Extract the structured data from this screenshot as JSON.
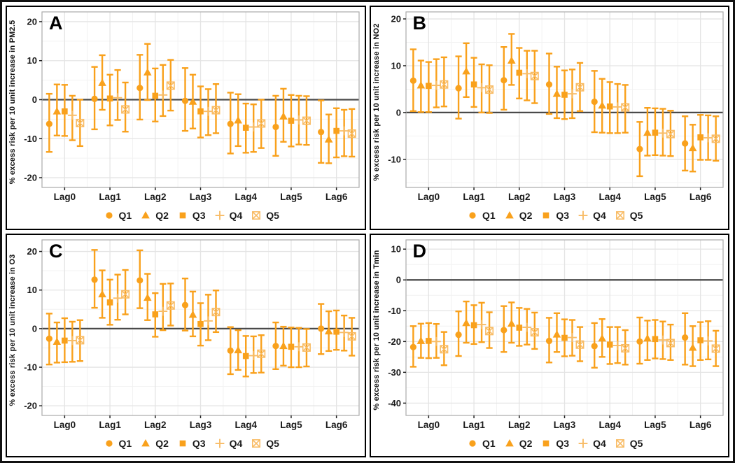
{
  "figure": {
    "background": "#ffffff",
    "border_color": "#111111"
  },
  "theme": {
    "series_color": "#F9A11C",
    "series_light_color": "#F8BC66",
    "refline_color": "#4a4a4a",
    "grid_major_color": "#e4e4e4",
    "grid_minor_color": "#f2f2f2",
    "plot_border_color": "#ababab",
    "axis_text_color": "#1a1a1a",
    "tick_color": "#222222"
  },
  "legend_labels": [
    "Q1",
    "Q2",
    "Q3",
    "Q4",
    "Q5"
  ],
  "chart_data": [
    {
      "type": "scatter",
      "panel_label": "A",
      "ylabel": "% excess risk per 10 unit increase in PM2.5",
      "categories": [
        "Lag0",
        "Lag1",
        "Lag2",
        "Lag3",
        "Lag4",
        "Lag5",
        "Lag6"
      ],
      "yticks": [
        20,
        10,
        0,
        -10,
        -20
      ],
      "yminor": [
        15,
        5,
        -5,
        -15
      ],
      "ylim": [
        -22.5,
        22.5
      ],
      "refline": 0,
      "series": [
        {
          "name": "Q1",
          "marker": "circle",
          "values": [
            -6.2,
            0.2,
            3.0,
            -0.3,
            -6.2,
            -7.0,
            -8.3
          ],
          "lo": [
            -13.4,
            -7.6,
            -5.1,
            -8.0,
            -13.8,
            -14.4,
            -16.2
          ],
          "hi": [
            1.5,
            8.4,
            11.5,
            8.1,
            1.8,
            1.0,
            -0.2
          ]
        },
        {
          "name": "Q2",
          "marker": "triangle",
          "values": [
            -3.0,
            4.3,
            7.0,
            -0.5,
            -5.3,
            -4.3,
            -10.2
          ],
          "lo": [
            -9.2,
            -2.6,
            -0.1,
            -7.4,
            -11.9,
            -10.8,
            -16.3
          ],
          "hi": [
            3.9,
            11.4,
            14.3,
            6.4,
            1.4,
            2.8,
            -3.8
          ]
        },
        {
          "name": "Q3",
          "marker": "square",
          "values": [
            -3.0,
            0.3,
            1.0,
            -3.0,
            -7.2,
            -5.4,
            -8.0
          ],
          "lo": [
            -9.3,
            -6.6,
            -5.6,
            -9.7,
            -13.6,
            -12.0,
            -14.8
          ],
          "hi": [
            3.8,
            6.4,
            8.0,
            3.4,
            -1.0,
            1.2,
            -2.2
          ]
        },
        {
          "name": "Q4",
          "marker": "plus",
          "values": [
            -4.0,
            0.5,
            1.2,
            -3.0,
            -7.0,
            -5.2,
            -8.0
          ],
          "lo": [
            -10.4,
            -5.2,
            -4.2,
            -9.1,
            -13.4,
            -11.5,
            -14.5
          ],
          "hi": [
            1.0,
            7.6,
            8.9,
            2.7,
            -1.2,
            1.0,
            -2.6
          ]
        },
        {
          "name": "Q5",
          "marker": "square-x",
          "values": [
            -6.0,
            -2.5,
            3.6,
            -2.7,
            -6.1,
            -5.4,
            -8.7
          ],
          "lo": [
            -11.9,
            -8.2,
            -2.8,
            -8.6,
            -12.4,
            -11.6,
            -14.6
          ],
          "hi": [
            0.0,
            4.4,
            10.2,
            4.0,
            0.0,
            0.9,
            -2.4
          ]
        }
      ]
    },
    {
      "type": "scatter",
      "panel_label": "B",
      "ylabel": "% excess risk per 10 unit increase in NO2",
      "categories": [
        "Lag0",
        "Lag1",
        "Lag2",
        "Lag3",
        "Lag4",
        "Lag5",
        "Lag6"
      ],
      "yticks": [
        20,
        10,
        0,
        -10
      ],
      "yminor": [
        15,
        5,
        -5,
        -15
      ],
      "ylim": [
        -16,
        21.5
      ],
      "refline": 0,
      "series": [
        {
          "name": "Q1",
          "marker": "circle",
          "values": [
            6.8,
            5.2,
            6.9,
            6.0,
            2.3,
            -7.8,
            -6.6
          ],
          "lo": [
            0.3,
            -1.3,
            0.6,
            -0.3,
            -4.2,
            -13.6,
            -12.4
          ],
          "hi": [
            13.5,
            12.0,
            14.0,
            12.6,
            8.9,
            -2.0,
            -0.8
          ]
        },
        {
          "name": "Q2",
          "marker": "triangle",
          "values": [
            5.8,
            8.8,
            11.1,
            4.0,
            1.5,
            -4.3,
            -7.6
          ],
          "lo": [
            0.1,
            3.3,
            5.9,
            -1.2,
            -4.3,
            -9.2,
            -12.6
          ],
          "hi": [
            11.1,
            14.8,
            16.8,
            9.8,
            7.2,
            1.0,
            -2.6
          ]
        },
        {
          "name": "Q3",
          "marker": "square",
          "values": [
            5.7,
            6.0,
            8.5,
            3.8,
            1.3,
            -4.3,
            -5.3
          ],
          "lo": [
            0.1,
            1.2,
            3.0,
            -1.4,
            -4.4,
            -9.1,
            -10.1
          ],
          "hi": [
            10.8,
            11.7,
            13.8,
            9.0,
            6.5,
            0.9,
            -0.5
          ]
        },
        {
          "name": "Q4",
          "marker": "plus",
          "values": [
            5.8,
            5.3,
            8.3,
            4.0,
            1.2,
            -4.4,
            -5.4
          ],
          "lo": [
            1.1,
            0.0,
            2.6,
            -1.2,
            -4.4,
            -9.2,
            -10.1
          ],
          "hi": [
            11.4,
            10.3,
            13.2,
            9.2,
            6.1,
            0.8,
            -0.6
          ]
        },
        {
          "name": "Q5",
          "marker": "square-x",
          "values": [
            6.0,
            4.9,
            7.8,
            5.4,
            1.1,
            -4.6,
            -5.6
          ],
          "lo": [
            1.3,
            -0.1,
            2.0,
            0.3,
            -4.3,
            -9.3,
            -10.3
          ],
          "hi": [
            11.8,
            10.1,
            13.2,
            10.6,
            5.9,
            0.4,
            -0.8
          ]
        }
      ]
    },
    {
      "type": "scatter",
      "panel_label": "C",
      "ylabel": "% excess risk per 10 unit increase in O3",
      "categories": [
        "Lag0",
        "Lag1",
        "Lag2",
        "Lag3",
        "Lag4",
        "Lag5",
        "Lag6"
      ],
      "yticks": [
        20,
        10,
        0,
        -10,
        -20
      ],
      "yminor": [
        15,
        5,
        -5,
        -15
      ],
      "ylim": [
        -22.5,
        23
      ],
      "refline": 0,
      "series": [
        {
          "name": "Q1",
          "marker": "circle",
          "values": [
            -2.6,
            12.7,
            12.5,
            6.1,
            -5.7,
            -4.5,
            0.0
          ],
          "lo": [
            -9.3,
            5.4,
            5.3,
            -0.5,
            -11.8,
            -10.5,
            -6.6
          ],
          "hi": [
            3.9,
            20.4,
            20.3,
            13.0,
            0.4,
            1.6,
            6.4
          ]
        },
        {
          "name": "Q2",
          "marker": "triangle",
          "values": [
            -3.4,
            8.9,
            8.0,
            3.6,
            -5.6,
            -4.5,
            -0.7
          ],
          "lo": [
            -8.8,
            2.8,
            2.2,
            -2.0,
            -10.7,
            -9.6,
            -5.8
          ],
          "hi": [
            1.6,
            15.1,
            14.2,
            9.6,
            -0.4,
            0.5,
            4.5
          ]
        },
        {
          "name": "Q3",
          "marker": "square",
          "values": [
            -3.1,
            6.8,
            3.7,
            1.2,
            -7.1,
            -4.7,
            -0.8
          ],
          "lo": [
            -8.7,
            1.0,
            -2.1,
            -4.4,
            -12.4,
            -10.0,
            -5.5
          ],
          "hi": [
            2.7,
            12.7,
            9.2,
            6.6,
            -1.9,
            0.3,
            4.7
          ]
        },
        {
          "name": "Q4",
          "marker": "plus",
          "values": [
            -3.1,
            7.9,
            4.5,
            2.0,
            -7.0,
            -4.7,
            -1.0
          ],
          "lo": [
            -8.6,
            2.3,
            -0.4,
            -3.0,
            -11.5,
            -10.0,
            -5.7
          ],
          "hi": [
            1.8,
            14.0,
            11.6,
            8.8,
            -2.0,
            0.2,
            3.4
          ]
        },
        {
          "name": "Q5",
          "marker": "square-x",
          "values": [
            -3.0,
            8.9,
            6.0,
            4.3,
            -6.5,
            -4.9,
            -2.0
          ],
          "lo": [
            -8.4,
            3.7,
            0.8,
            -0.9,
            -11.4,
            -9.8,
            -7.0
          ],
          "hi": [
            2.2,
            15.2,
            11.7,
            9.9,
            -1.7,
            -0.1,
            2.8
          ]
        }
      ]
    },
    {
      "type": "scatter",
      "panel_label": "D",
      "ylabel": "% excess risk per 10 unit increase in Tmin",
      "categories": [
        "Lag0",
        "Lag1",
        "Lag2",
        "Lag3",
        "Lag4",
        "Lag5",
        "Lag6"
      ],
      "yticks": [
        10,
        0,
        -10,
        -20,
        -30,
        -40
      ],
      "yminor": [
        5,
        -5,
        -15,
        -25,
        -35
      ],
      "ylim": [
        -44,
        13
      ],
      "refline": 0,
      "series": [
        {
          "name": "Q1",
          "marker": "circle",
          "values": [
            -21.8,
            -17.8,
            -16.3,
            -19.8,
            -21.5,
            -20.0,
            -18.7
          ],
          "lo": [
            -28.2,
            -24.7,
            -23.4,
            -26.8,
            -28.5,
            -27.2,
            -27.5
          ],
          "hi": [
            -15.0,
            -10.2,
            -8.5,
            -12.3,
            -14.0,
            -12.2,
            -10.8
          ]
        },
        {
          "name": "Q2",
          "marker": "triangle",
          "values": [
            -19.8,
            -14.0,
            -14.2,
            -17.7,
            -19.0,
            -19.0,
            -22.0
          ],
          "lo": [
            -25.3,
            -20.4,
            -20.4,
            -23.4,
            -25.0,
            -26.0,
            -28.0
          ],
          "hi": [
            -14.2,
            -7.0,
            -7.3,
            -10.8,
            -12.7,
            -13.2,
            -15.0
          ]
        },
        {
          "name": "Q3",
          "marker": "square",
          "values": [
            -19.8,
            -14.7,
            -15.5,
            -18.8,
            -21.0,
            -19.2,
            -19.6
          ],
          "lo": [
            -25.4,
            -20.8,
            -21.4,
            -24.8,
            -27.3,
            -25.5,
            -26.0
          ],
          "hi": [
            -14.0,
            -8.2,
            -9.1,
            -12.8,
            -15.3,
            -13.0,
            -13.7
          ]
        },
        {
          "name": "Q4",
          "marker": "plus",
          "values": [
            -20.0,
            -14.5,
            -15.4,
            -18.7,
            -21.3,
            -19.5,
            -19.8
          ],
          "lo": [
            -25.3,
            -20.2,
            -21.0,
            -24.6,
            -27.0,
            -25.7,
            -25.8
          ],
          "hi": [
            -14.3,
            -7.4,
            -9.4,
            -13.0,
            -15.3,
            -13.5,
            -13.4
          ]
        },
        {
          "name": "Q5",
          "marker": "square-x",
          "values": [
            -22.5,
            -16.6,
            -17.0,
            -21.0,
            -22.2,
            -20.5,
            -22.3
          ],
          "lo": [
            -27.7,
            -22.1,
            -22.4,
            -26.4,
            -27.5,
            -26.0,
            -28.0
          ],
          "hi": [
            -16.9,
            -10.5,
            -10.6,
            -15.3,
            -16.3,
            -14.5,
            -16.5
          ]
        }
      ]
    }
  ]
}
